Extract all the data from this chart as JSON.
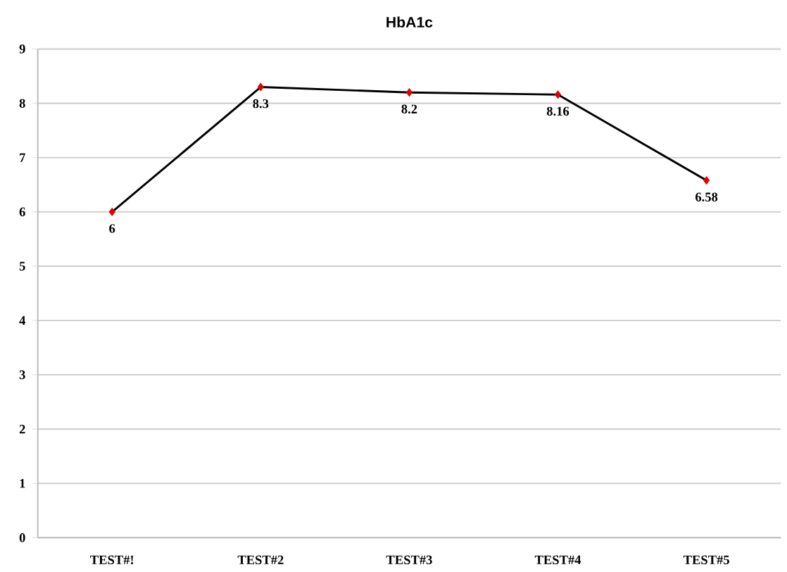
{
  "chart_data": {
    "type": "line",
    "title": "HbA1c",
    "categories": [
      "TEST#!",
      "TEST#2",
      "TEST#3",
      "TEST#4",
      "TEST#5"
    ],
    "series": [
      {
        "color": "#000000",
        "colors": [
          "#e00000",
          "#e00000",
          "#e00000",
          "#e00000",
          "#e00000"
        ],
        "values": [
          6,
          8.3,
          8.2,
          8.16,
          6.58
        ]
      }
    ],
    "ylim": [
      0,
      9
    ],
    "yticks": [
      0,
      1,
      2,
      3,
      4,
      5,
      6,
      7,
      8,
      9
    ],
    "grid": "y",
    "marker": "diamond",
    "line_style": "solid",
    "data_labels": true
  }
}
